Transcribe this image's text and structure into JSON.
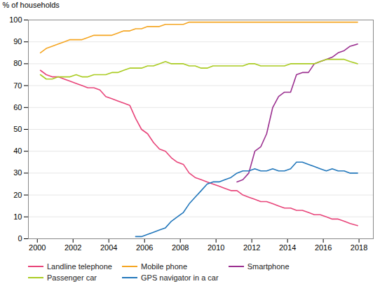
{
  "chart_data": {
    "type": "line",
    "ylabel": "% of households",
    "xlim": [
      1999.5,
      2018.8
    ],
    "ylim": [
      0,
      100
    ],
    "xticks": [
      2000,
      2002,
      2004,
      2006,
      2008,
      2010,
      2012,
      2014,
      2016,
      2018
    ],
    "yticks": [
      0,
      10,
      20,
      30,
      40,
      50,
      60,
      70,
      80,
      90,
      100
    ],
    "grid": "y",
    "legend": "bottom",
    "series": [
      {
        "name": "Landline telephone",
        "color": "#E8457A",
        "x": [
          2000.17,
          2000.5,
          2000.83,
          2001.17,
          2001.5,
          2001.83,
          2002.17,
          2002.5,
          2002.83,
          2003.17,
          2003.5,
          2003.83,
          2004.17,
          2004.5,
          2004.83,
          2005.17,
          2005.5,
          2005.83,
          2006.17,
          2006.5,
          2006.83,
          2007.17,
          2007.5,
          2007.83,
          2008.17,
          2008.5,
          2008.83,
          2009.17,
          2009.5,
          2009.83,
          2010.17,
          2010.5,
          2010.83,
          2011.17,
          2011.5,
          2011.83,
          2012.17,
          2012.5,
          2012.83,
          2013.17,
          2013.5,
          2013.83,
          2014.17,
          2014.5,
          2014.83,
          2015.17,
          2015.5,
          2015.83,
          2016.17,
          2016.5,
          2016.83,
          2017.17,
          2017.5,
          2017.92
        ],
        "values": [
          77,
          75,
          74,
          74,
          73,
          72,
          71,
          70,
          69,
          69,
          68,
          65,
          64,
          63,
          62,
          61,
          55,
          50,
          48,
          44,
          41,
          40,
          37,
          35,
          34,
          30,
          28,
          27,
          26,
          25,
          24,
          23,
          22,
          22,
          20,
          19,
          18,
          17,
          17,
          16,
          15,
          14,
          14,
          13,
          13,
          12,
          11,
          11,
          10,
          9,
          9,
          8,
          7,
          6
        ]
      },
      {
        "name": "Mobile phone",
        "color": "#F5A623",
        "x": [
          2000.17,
          2000.5,
          2000.83,
          2001.17,
          2001.5,
          2001.83,
          2002.17,
          2002.5,
          2002.83,
          2003.17,
          2003.5,
          2003.83,
          2004.17,
          2004.5,
          2004.83,
          2005.17,
          2005.5,
          2005.83,
          2006.17,
          2006.5,
          2006.83,
          2007.17,
          2007.5,
          2007.83,
          2008.17,
          2008.5,
          2008.83,
          2009.17,
          2009.5,
          2009.83,
          2010.17,
          2010.5,
          2010.83,
          2011.17,
          2011.5,
          2011.83,
          2012.17,
          2012.5,
          2012.83,
          2013.17,
          2013.5,
          2013.83,
          2014.17,
          2014.5,
          2014.83,
          2015.17,
          2015.5,
          2015.83,
          2016.17,
          2016.5,
          2016.83,
          2017.17,
          2017.5,
          2017.92
        ],
        "values": [
          85,
          87,
          88,
          89,
          90,
          91,
          91,
          91,
          92,
          93,
          93,
          93,
          93,
          94,
          95,
          95,
          96,
          96,
          97,
          97,
          97,
          98,
          98,
          98,
          98,
          99,
          99,
          99,
          99,
          99,
          99,
          99,
          99,
          99,
          99,
          99,
          99,
          99,
          99,
          99,
          99,
          99,
          99,
          99,
          99,
          99,
          99,
          99,
          99,
          99,
          99,
          99,
          99,
          99
        ]
      },
      {
        "name": "Smartphone",
        "color": "#9B3090",
        "x": [
          2011.17,
          2011.5,
          2011.83,
          2012.17,
          2012.5,
          2012.83,
          2013.17,
          2013.5,
          2013.83,
          2014.17,
          2014.5,
          2014.83,
          2015.17,
          2015.5,
          2015.83,
          2016.17,
          2016.5,
          2016.83,
          2017.17,
          2017.5,
          2017.92
        ],
        "values": [
          26,
          27,
          30,
          40,
          42,
          48,
          60,
          65,
          67,
          67,
          75,
          76,
          76,
          80,
          81,
          82,
          83,
          85,
          86,
          88,
          89
        ]
      },
      {
        "name": "Passenger car",
        "color": "#AACC22",
        "x": [
          2000.17,
          2000.5,
          2000.83,
          2001.17,
          2001.5,
          2001.83,
          2002.17,
          2002.5,
          2002.83,
          2003.17,
          2003.5,
          2003.83,
          2004.17,
          2004.5,
          2004.83,
          2005.17,
          2005.5,
          2005.83,
          2006.17,
          2006.5,
          2006.83,
          2007.17,
          2007.5,
          2007.83,
          2008.17,
          2008.5,
          2008.83,
          2009.17,
          2009.5,
          2009.83,
          2010.17,
          2010.5,
          2010.83,
          2011.17,
          2011.5,
          2011.83,
          2012.17,
          2012.5,
          2012.83,
          2013.17,
          2013.5,
          2013.83,
          2014.17,
          2014.5,
          2014.83,
          2015.17,
          2015.5,
          2015.83,
          2016.17,
          2016.5,
          2016.83,
          2017.17,
          2017.5,
          2017.92
        ],
        "values": [
          75,
          73,
          73,
          74,
          74,
          74,
          75,
          74,
          74,
          75,
          75,
          75,
          76,
          76,
          77,
          78,
          78,
          78,
          79,
          79,
          80,
          81,
          80,
          80,
          80,
          79,
          79,
          78,
          78,
          79,
          79,
          79,
          79,
          79,
          79,
          80,
          80,
          79,
          79,
          79,
          79,
          79,
          80,
          80,
          80,
          80,
          80,
          81,
          82,
          82,
          82,
          82,
          81,
          80
        ]
      },
      {
        "name": "GPS navigator in a car",
        "color": "#2277BB",
        "x": [
          2005.5,
          2005.83,
          2006.17,
          2006.5,
          2006.83,
          2007.17,
          2007.5,
          2007.83,
          2008.17,
          2008.5,
          2008.83,
          2009.17,
          2009.5,
          2009.83,
          2010.17,
          2010.5,
          2010.83,
          2011.17,
          2011.5,
          2011.83,
          2012.17,
          2012.5,
          2012.83,
          2013.17,
          2013.5,
          2013.83,
          2014.17,
          2014.5,
          2014.83,
          2015.17,
          2015.5,
          2015.83,
          2016.17,
          2016.5,
          2016.83,
          2017.17,
          2017.5,
          2017.92
        ],
        "values": [
          1,
          1,
          2,
          3,
          4,
          5,
          8,
          10,
          12,
          16,
          19,
          22,
          25,
          26,
          26,
          27,
          28,
          30,
          31,
          31,
          32,
          31,
          31,
          32,
          31,
          31,
          32,
          35,
          35,
          34,
          33,
          32,
          31,
          32,
          31,
          31,
          30,
          30
        ]
      }
    ]
  }
}
